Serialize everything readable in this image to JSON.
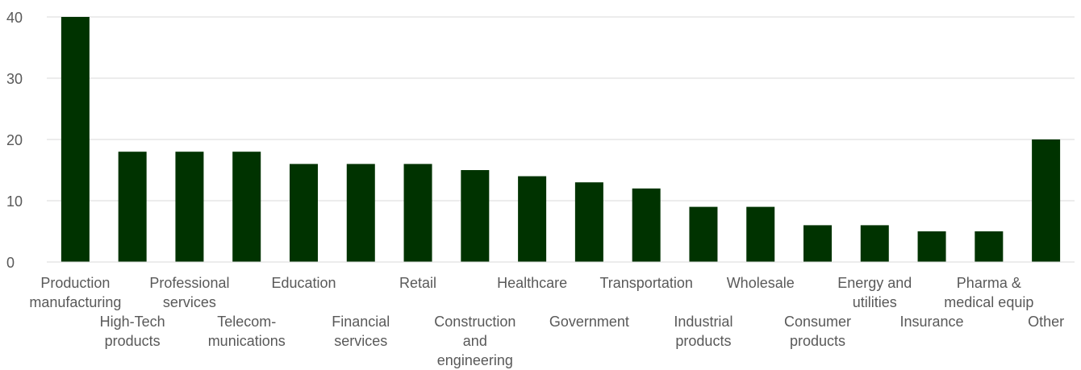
{
  "chart_data": {
    "type": "bar",
    "categories": [
      [
        "Production",
        "manufacturing"
      ],
      [
        "High-Tech",
        "products"
      ],
      [
        "Professional",
        "services"
      ],
      [
        "Telecom-",
        "munications"
      ],
      [
        "Education"
      ],
      [
        "Financial",
        "services"
      ],
      [
        "Retail"
      ],
      [
        "Construction",
        "and",
        "engineering"
      ],
      [
        "Healthcare"
      ],
      [
        "Government"
      ],
      [
        "Transportation"
      ],
      [
        "Industrial",
        "products"
      ],
      [
        "Wholesale"
      ],
      [
        "Consumer",
        "products"
      ],
      [
        "Energy and",
        "utilities"
      ],
      [
        "Insurance"
      ],
      [
        "Pharma &",
        "medical equip"
      ],
      [
        "Other"
      ]
    ],
    "values": [
      40,
      18,
      18,
      18,
      16,
      16,
      16,
      15,
      14,
      13,
      12,
      9,
      9,
      6,
      6,
      5,
      5,
      20
    ],
    "yticks": [
      0,
      10,
      20,
      30,
      40
    ],
    "ylim": [
      0,
      40
    ],
    "grid": true,
    "colors": {
      "bar": "#003300",
      "grid": "#d9d9d9",
      "label": "#595959"
    }
  }
}
